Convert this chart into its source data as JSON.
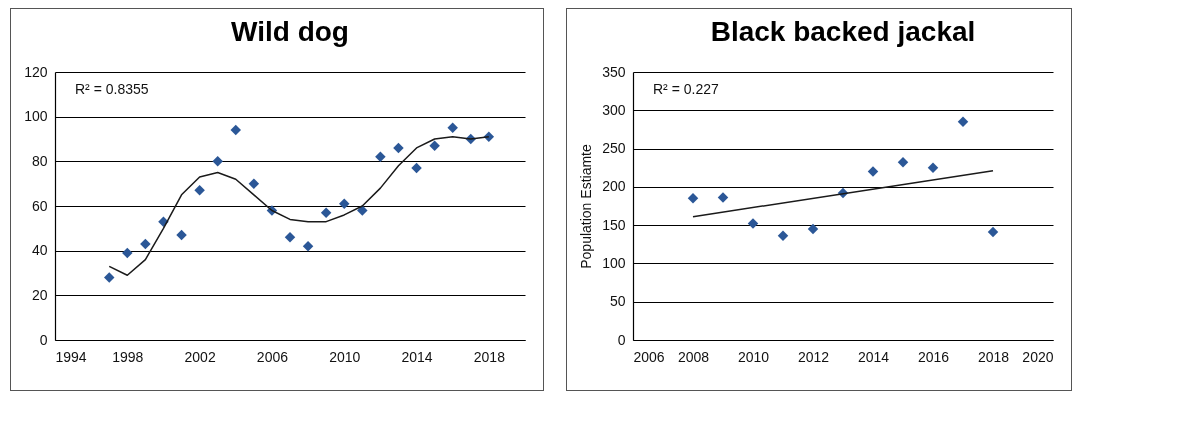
{
  "chart_data": [
    {
      "type": "scatter",
      "title": "Wild dog",
      "x": [
        1997,
        1998,
        1999,
        2000,
        2001,
        2002,
        2003,
        2004,
        2005,
        2006,
        2007,
        2008,
        2009,
        2010,
        2011,
        2012,
        2013,
        2014,
        2015,
        2016,
        2017,
        2018
      ],
      "series": [
        {
          "type": "scatter",
          "color": "#2b5797",
          "marker": "diamond",
          "values": [
            28,
            39,
            43,
            53,
            47,
            67,
            80,
            94,
            70,
            58,
            46,
            42,
            57,
            61,
            58,
            82,
            86,
            77,
            87,
            95,
            90,
            91
          ]
        },
        {
          "type": "line",
          "color": "#1a1a1a",
          "line_style": "solid",
          "x": [
            1997,
            1998,
            1999,
            2000,
            2001,
            2002,
            2003,
            2004,
            2005,
            2006,
            2007,
            2008,
            2009,
            2010,
            2011,
            2012,
            2013,
            2014,
            2015,
            2016,
            2017,
            2018
          ],
          "values": [
            33,
            29,
            36,
            50,
            65,
            73,
            75,
            72,
            65,
            58,
            54,
            53,
            53,
            56,
            60,
            68,
            78,
            86,
            90,
            91,
            90,
            91
          ]
        }
      ],
      "xlim": [
        1994,
        2020
      ],
      "xticks": [
        1994,
        1998,
        2002,
        2006,
        2010,
        2014,
        2018
      ],
      "ylim": [
        0,
        120
      ],
      "yticks": [
        0,
        20,
        40,
        60,
        80,
        100,
        120
      ],
      "grid": "y",
      "annotations": [
        "R² = 0.8355"
      ]
    },
    {
      "type": "scatter",
      "title": "Black backed jackal",
      "ylabel": "Population Estiamte",
      "x": [
        2008,
        2009,
        2010,
        2011,
        2012,
        2013,
        2014,
        2015,
        2016,
        2017,
        2018
      ],
      "series": [
        {
          "type": "scatter",
          "color": "#2b5797",
          "marker": "diamond",
          "values": [
            185,
            186,
            152,
            136,
            145,
            192,
            220,
            232,
            225,
            285,
            141
          ]
        },
        {
          "type": "line",
          "color": "#1a1a1a",
          "line_style": "solid",
          "x": [
            2008,
            2018
          ],
          "values": [
            161,
            221
          ]
        }
      ],
      "xlim": [
        2006,
        2020
      ],
      "xticks": [
        2006,
        2008,
        2010,
        2012,
        2014,
        2016,
        2018,
        2020
      ],
      "ylim": [
        0,
        350
      ],
      "yticks": [
        0,
        50,
        100,
        150,
        200,
        250,
        300,
        350
      ],
      "grid": "y",
      "annotations": [
        "R² = 0.227"
      ]
    }
  ]
}
